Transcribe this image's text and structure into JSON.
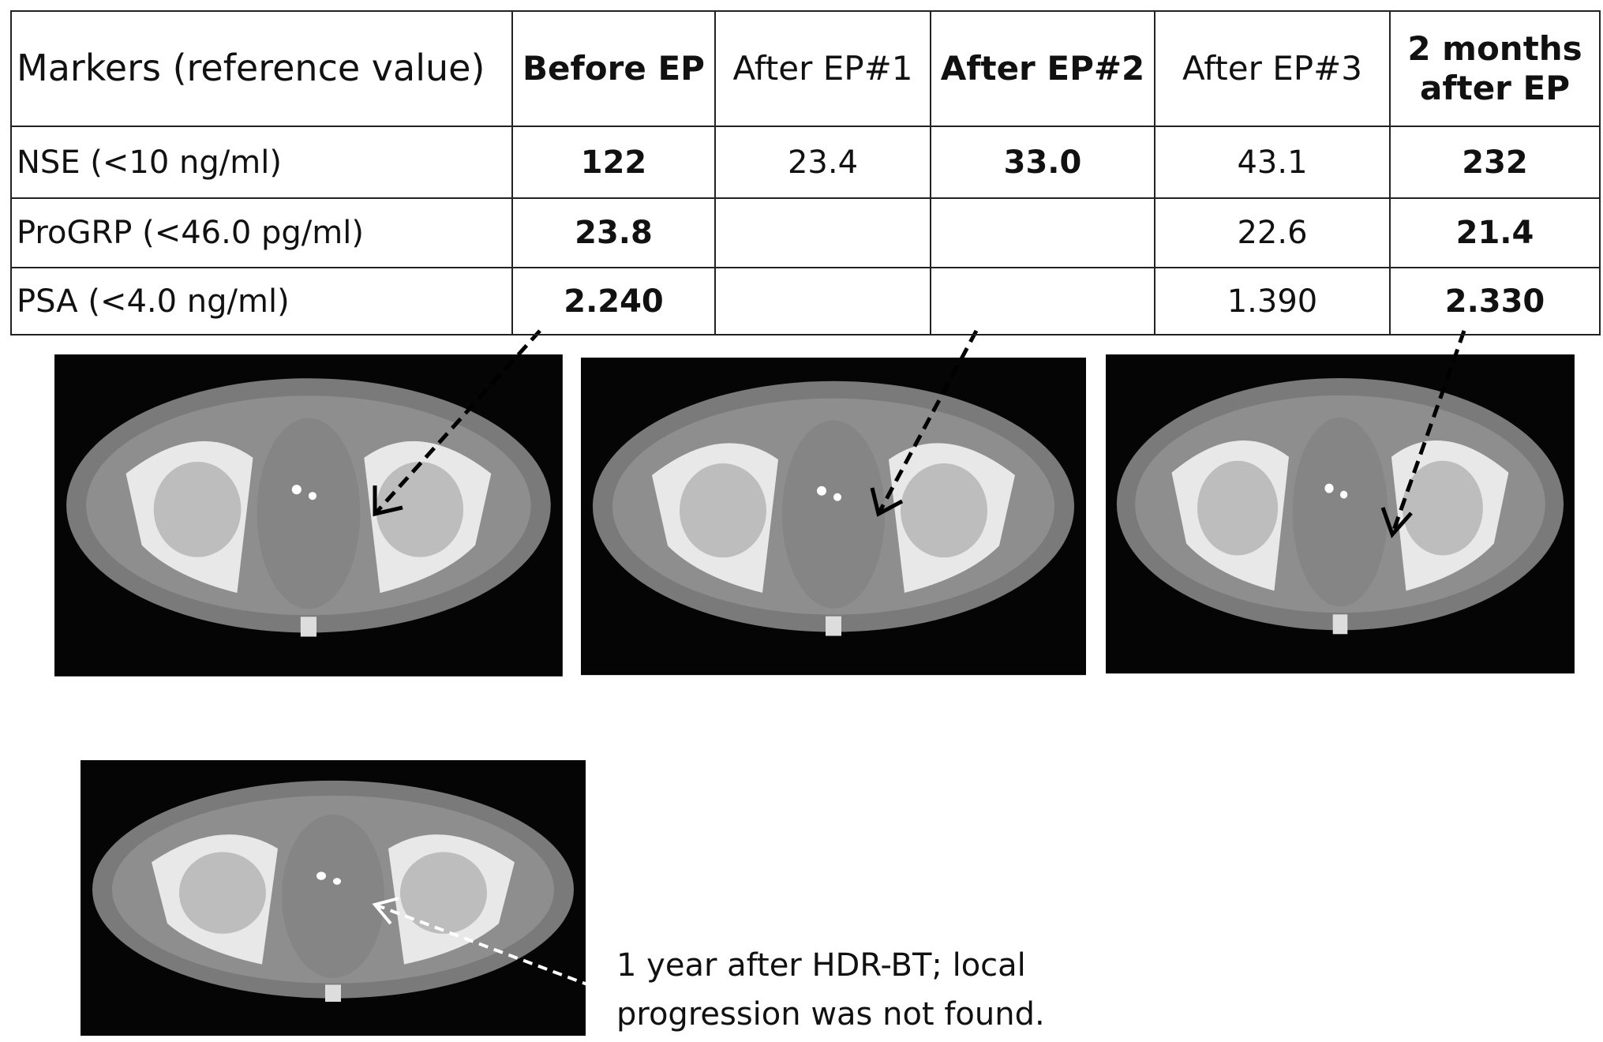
{
  "table": {
    "header": [
      "Markers (reference value)",
      "Before EP",
      "After EP#1",
      "After EP#2",
      "After EP#3",
      "2 months after EP"
    ],
    "rows": [
      [
        "NSE (<10 ng/ml)",
        "122",
        "23.4",
        "33.0",
        "43.1",
        "232"
      ],
      [
        "ProGRP (<46.0 pg/ml)",
        "23.8",
        null,
        null,
        "22.6",
        "21.4"
      ],
      [
        "PSA (<4.0 ng/ml)",
        "2.240",
        null,
        null,
        "1.390",
        "2.330"
      ]
    ]
  },
  "caption": [
    "1 year after HDR-BT; local",
    "progression was not found."
  ]
}
